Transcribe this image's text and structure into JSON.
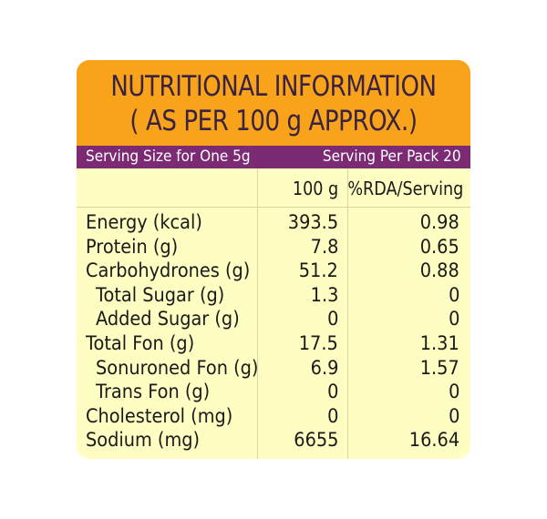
{
  "header": {
    "title_line1": "NUTRITIONAL INFORMATION",
    "title_line2": "( AS PER 100 g APPROX.)"
  },
  "serving": {
    "size_label": "Serving Size for One 5g",
    "per_pack_label": "Serving Per Pack 20"
  },
  "columns": {
    "col1": "100 g",
    "col2": "%RDA/Serving"
  },
  "colors": {
    "header_bg": "#f9a31b",
    "serving_bg": "#7b2a73",
    "panel_bg": "#fefdc2"
  },
  "rows": [
    {
      "label": "Energy (kcal)",
      "per100g": "393.5",
      "rda": "0.98",
      "indent": false
    },
    {
      "label": "Protein (g)",
      "per100g": "7.8",
      "rda": "0.65",
      "indent": false
    },
    {
      "label": "Carbohydrones (g)",
      "per100g": "51.2",
      "rda": "0.88",
      "indent": false
    },
    {
      "label": "Total Sugar (g)",
      "per100g": "1.3",
      "rda": "0",
      "indent": true
    },
    {
      "label": "Added Sugar (g)",
      "per100g": "0",
      "rda": "0",
      "indent": true
    },
    {
      "label": "Total Fon (g)",
      "per100g": "17.5",
      "rda": "1.31",
      "indent": false
    },
    {
      "label": "Sonuroned Fon (g)",
      "per100g": "6.9",
      "rda": "1.57",
      "indent": true
    },
    {
      "label": "Trans Fon (g)",
      "per100g": "0",
      "rda": "0",
      "indent": true
    },
    {
      "label": "Cholesterol (mg)",
      "per100g": "0",
      "rda": "0",
      "indent": false
    },
    {
      "label": "Sodium (mg)",
      "per100g": "6655",
      "rda": "16.64",
      "indent": false
    }
  ]
}
